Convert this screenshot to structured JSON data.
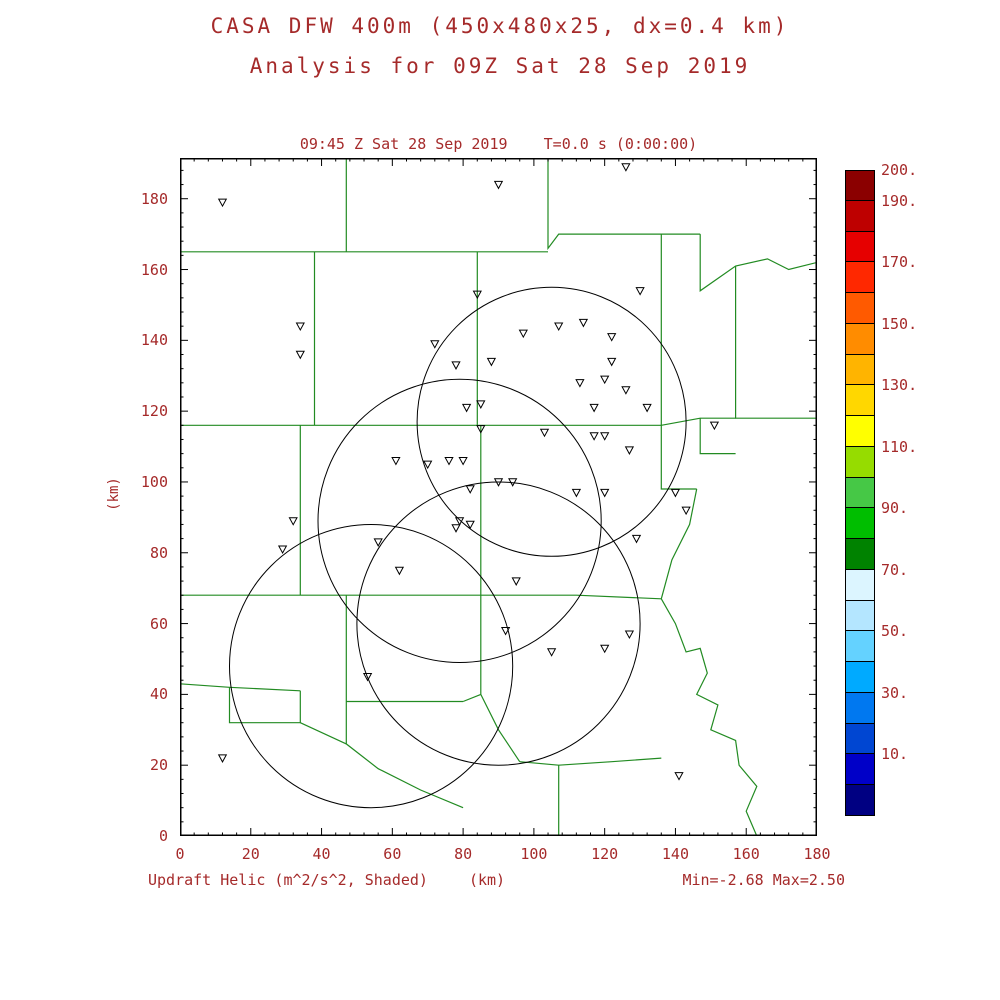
{
  "title": {
    "line1": "CASA DFW 400m (450x480x25, dx=0.4 km)",
    "line2": "Analysis for 09Z Sat 28 Sep 2019"
  },
  "plot_header": "09:45 Z Sat 28 Sep 2019    T=0.0 s (0:00:00)",
  "footer": {
    "left": "Updraft Helic (m^2/s^2, Shaded)",
    "center": "(km)",
    "right": "Min=-2.68 Max=2.50"
  },
  "axes": {
    "x_ticks": [
      "0",
      "20",
      "40",
      "60",
      "80",
      "100",
      "120",
      "140",
      "160",
      "180"
    ],
    "y_ticks": [
      "0",
      "20",
      "40",
      "60",
      "80",
      "100",
      "120",
      "140",
      "160",
      "180"
    ],
    "x_range": [
      0,
      180
    ],
    "y_range": [
      0,
      191.5
    ],
    "y_label": "(km)",
    "x_unit": "(km)"
  },
  "colors": {
    "text": "#A52A2A",
    "boundary": "#228B22",
    "circle": "#000000",
    "marker": "#000000",
    "background": "#FFFFFF"
  },
  "chart_data": {
    "type": "scatter",
    "title": "CASA DFW 400m (450x480x25, dx=0.4 km) Analysis for 09Z Sat 28 Sep 2019",
    "subtitle": "09:45 Z Sat 28 Sep 2019  T=0.0 s (0:00:00)",
    "field_label": "Updraft Helic (m^2/s^2, Shaded)",
    "min_value": -2.68,
    "max_value": 2.5,
    "xlabel": "(km)",
    "ylabel": "(km)",
    "xlim": [
      0,
      180
    ],
    "ylim": [
      0,
      191.5
    ],
    "grid": false,
    "radar_circles": [
      {
        "x": 105,
        "y": 117,
        "r": 38
      },
      {
        "x": 79,
        "y": 89,
        "r": 40
      },
      {
        "x": 54,
        "y": 48,
        "r": 40
      },
      {
        "x": 90,
        "y": 60,
        "r": 40
      }
    ],
    "stations": [
      [
        12,
        179
      ],
      [
        90,
        184
      ],
      [
        126,
        189
      ],
      [
        84,
        153
      ],
      [
        130,
        154
      ],
      [
        34,
        144
      ],
      [
        34,
        136
      ],
      [
        107,
        144
      ],
      [
        114,
        145
      ],
      [
        122,
        141
      ],
      [
        72,
        139
      ],
      [
        97,
        142
      ],
      [
        78,
        133
      ],
      [
        88,
        134
      ],
      [
        122,
        134
      ],
      [
        113,
        128
      ],
      [
        120,
        129
      ],
      [
        126,
        126
      ],
      [
        81,
        121
      ],
      [
        85,
        122
      ],
      [
        117,
        121
      ],
      [
        132,
        121
      ],
      [
        85,
        115
      ],
      [
        103,
        114
      ],
      [
        151,
        116
      ],
      [
        117,
        113
      ],
      [
        120,
        113
      ],
      [
        127,
        109
      ],
      [
        61,
        106
      ],
      [
        70,
        105
      ],
      [
        76,
        106
      ],
      [
        80,
        106
      ],
      [
        90,
        100
      ],
      [
        94,
        100
      ],
      [
        82,
        98
      ],
      [
        112,
        97
      ],
      [
        120,
        97
      ],
      [
        140,
        97
      ],
      [
        143,
        92
      ],
      [
        32,
        89
      ],
      [
        79,
        89
      ],
      [
        82,
        88
      ],
      [
        78,
        87
      ],
      [
        29,
        81
      ],
      [
        56,
        83
      ],
      [
        129,
        84
      ],
      [
        62,
        75
      ],
      [
        95,
        72
      ],
      [
        92,
        58
      ],
      [
        105,
        52
      ],
      [
        120,
        53
      ],
      [
        127,
        57
      ],
      [
        53,
        45
      ],
      [
        12,
        22
      ],
      [
        141,
        17
      ]
    ],
    "boundaries": [
      [
        [
          0,
          165
        ],
        [
          104,
          165
        ]
      ],
      [
        [
          47,
          191.5
        ],
        [
          47,
          165
        ]
      ],
      [
        [
          104,
          191.5
        ],
        [
          104,
          166
        ],
        [
          107,
          170
        ],
        [
          147,
          170
        ]
      ],
      [
        [
          147,
          170
        ],
        [
          147,
          154
        ],
        [
          157,
          161
        ],
        [
          166,
          163
        ],
        [
          172,
          160
        ],
        [
          180,
          162
        ]
      ],
      [
        [
          157,
          161
        ],
        [
          157,
          118
        ],
        [
          180,
          118
        ]
      ],
      [
        [
          0,
          116
        ],
        [
          136,
          116
        ],
        [
          147,
          118
        ],
        [
          157,
          118
        ]
      ],
      [
        [
          38,
          165
        ],
        [
          38,
          116
        ]
      ],
      [
        [
          84,
          165
        ],
        [
          84,
          116
        ]
      ],
      [
        [
          136,
          170
        ],
        [
          136,
          98
        ],
        [
          146,
          98
        ]
      ],
      [
        [
          146,
          98
        ],
        [
          144,
          88
        ],
        [
          139,
          78
        ],
        [
          136,
          67
        ]
      ],
      [
        [
          136,
          67
        ],
        [
          140,
          60
        ],
        [
          143,
          52
        ],
        [
          147,
          53
        ],
        [
          149,
          46
        ],
        [
          146,
          40
        ],
        [
          152,
          37
        ],
        [
          150,
          30
        ],
        [
          157,
          27
        ],
        [
          158,
          20
        ],
        [
          163,
          14
        ],
        [
          160,
          7
        ],
        [
          163,
          0
        ]
      ],
      [
        [
          0,
          68
        ],
        [
          85,
          68
        ]
      ],
      [
        [
          34,
          116
        ],
        [
          34,
          68
        ]
      ],
      [
        [
          85,
          116
        ],
        [
          85,
          40
        ]
      ],
      [
        [
          85,
          68
        ],
        [
          112,
          68
        ],
        [
          136,
          67
        ]
      ],
      [
        [
          147,
          118
        ],
        [
          147,
          108
        ],
        [
          157,
          108
        ]
      ],
      [
        [
          0,
          43
        ],
        [
          14,
          42
        ],
        [
          34,
          41
        ]
      ],
      [
        [
          14,
          42
        ],
        [
          14,
          32
        ],
        [
          34,
          32
        ],
        [
          34,
          41
        ]
      ],
      [
        [
          34,
          32
        ],
        [
          47,
          26
        ]
      ],
      [
        [
          47,
          68
        ],
        [
          47,
          38
        ]
      ],
      [
        [
          47,
          38
        ],
        [
          80,
          38
        ]
      ],
      [
        [
          80,
          38
        ],
        [
          85,
          40
        ]
      ],
      [
        [
          85,
          40
        ],
        [
          90,
          30
        ],
        [
          96,
          21
        ]
      ],
      [
        [
          96,
          21
        ],
        [
          107,
          20
        ],
        [
          122,
          21
        ],
        [
          136,
          22
        ]
      ],
      [
        [
          107,
          20
        ],
        [
          107,
          0
        ]
      ],
      [
        [
          47,
          38
        ],
        [
          47,
          26
        ],
        [
          56,
          19
        ],
        [
          68,
          13
        ],
        [
          80,
          8
        ]
      ]
    ],
    "colorbar": {
      "top_value": 200,
      "bottom_value": -10,
      "segments": [
        "#8B0000",
        "#BE0000",
        "#E60000",
        "#FF2800",
        "#FF5A00",
        "#FF8C00",
        "#FFB400",
        "#FFD700",
        "#FFFF00",
        "#96DC00",
        "#46C846",
        "#00BE00",
        "#008200",
        "#DCF5FF",
        "#B4E6FF",
        "#64D2FF",
        "#00AAFF",
        "#0078F0",
        "#0046D2",
        "#0000C8",
        "#000082"
      ],
      "labels": [
        "200.",
        "190.",
        "170.",
        "150.",
        "130.",
        "110.",
        "90.",
        "70.",
        "50.",
        "30.",
        "10."
      ],
      "label_values": [
        200,
        190,
        170,
        150,
        130,
        110,
        90,
        70,
        50,
        30,
        10
      ]
    }
  }
}
